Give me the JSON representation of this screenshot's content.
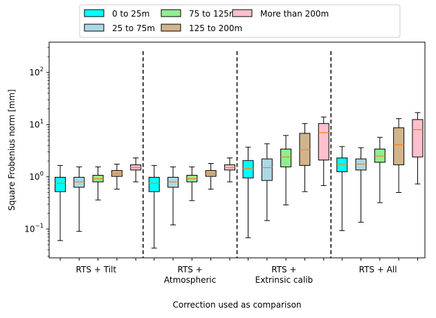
{
  "chart_data": {
    "type": "box",
    "title": "",
    "xlabel": "Correction used as comparison",
    "ylabel": "Square Frobenius norm [mm]",
    "yscale": "log",
    "ylim": [
      0.028,
      380
    ],
    "y_ticks": [
      {
        "value": 0.1,
        "base": "10",
        "exp": "−1"
      },
      {
        "value": 1,
        "base": "10",
        "exp": "0"
      },
      {
        "value": 10,
        "base": "10",
        "exp": "1"
      },
      {
        "value": 100,
        "base": "10",
        "exp": "2"
      }
    ],
    "groups": [
      {
        "label": [
          "RTS + Tilt"
        ]
      },
      {
        "label": [
          "RTS +",
          "Atmospheric"
        ]
      },
      {
        "label": [
          "RTS +",
          "Extrinsic calib"
        ]
      },
      {
        "label": [
          "RTS + All"
        ]
      }
    ],
    "legend": {
      "placement": "top-center",
      "entries": [
        {
          "label": "0 to 25m",
          "color": "#00FFFF"
        },
        {
          "label": "25 to 75m",
          "color": "#ADD8E6"
        },
        {
          "label": "75 to 125m",
          "color": "#90EE90"
        },
        {
          "label": "125 to 200m",
          "color": "#D2B48C"
        },
        {
          "label": "More than 200m",
          "color": "#FFC0CB"
        }
      ]
    },
    "series": [
      {
        "name": "0 to 25m",
        "color": "#00FFFF",
        "boxes": [
          {
            "min": 0.06,
            "q1": 0.52,
            "median": 0.75,
            "q3": 0.98,
            "max": 1.65
          },
          {
            "min": 0.043,
            "q1": 0.52,
            "median": 0.75,
            "q3": 0.98,
            "max": 1.65
          },
          {
            "min": 0.068,
            "q1": 0.95,
            "median": 1.45,
            "q3": 2.05,
            "max": 3.7
          },
          {
            "min": 0.093,
            "q1": 1.25,
            "median": 1.75,
            "q3": 2.3,
            "max": 3.8
          }
        ]
      },
      {
        "name": "25 to 75m",
        "color": "#ADD8E6",
        "boxes": [
          {
            "min": 0.09,
            "q1": 0.63,
            "median": 0.8,
            "q3": 0.98,
            "max": 1.55
          },
          {
            "min": 0.12,
            "q1": 0.63,
            "median": 0.8,
            "q3": 0.98,
            "max": 1.55
          },
          {
            "min": 0.145,
            "q1": 0.85,
            "median": 1.5,
            "q3": 2.2,
            "max": 4.3
          },
          {
            "min": 0.135,
            "q1": 1.35,
            "median": 1.75,
            "q3": 2.2,
            "max": 3.6
          }
        ]
      },
      {
        "name": "75 to 125m",
        "color": "#90EE90",
        "boxes": [
          {
            "min": 0.36,
            "q1": 0.8,
            "median": 0.92,
            "q3": 1.07,
            "max": 1.55
          },
          {
            "min": 0.35,
            "q1": 0.8,
            "median": 0.92,
            "q3": 1.07,
            "max": 1.55
          },
          {
            "min": 0.29,
            "q1": 1.55,
            "median": 2.4,
            "q3": 3.4,
            "max": 6.2
          },
          {
            "min": 0.32,
            "q1": 1.9,
            "median": 2.5,
            "q3": 3.4,
            "max": 5.7
          }
        ]
      },
      {
        "name": "125 to 200m",
        "color": "#D2B48C",
        "boxes": [
          {
            "min": 0.58,
            "q1": 1.02,
            "median": 1.15,
            "q3": 1.32,
            "max": 1.75
          },
          {
            "min": 0.58,
            "q1": 1.02,
            "median": 1.15,
            "q3": 1.32,
            "max": 1.8
          },
          {
            "min": 0.52,
            "q1": 1.65,
            "median": 3.3,
            "q3": 6.8,
            "max": 10.5
          },
          {
            "min": 0.5,
            "q1": 1.7,
            "median": 4.1,
            "q3": 8.7,
            "max": 13.0
          }
        ]
      },
      {
        "name": "More than 200m",
        "color": "#FFC0CB",
        "boxes": [
          {
            "min": 0.8,
            "q1": 1.35,
            "median": 1.5,
            "q3": 1.7,
            "max": 2.3
          },
          {
            "min": 0.8,
            "q1": 1.35,
            "median": 1.5,
            "q3": 1.7,
            "max": 2.3
          },
          {
            "min": 0.68,
            "q1": 2.1,
            "median": 7.0,
            "q3": 10.5,
            "max": 14.0
          },
          {
            "min": 0.73,
            "q1": 2.4,
            "median": 8.0,
            "q3": 12.5,
            "max": 17.0
          }
        ]
      }
    ],
    "separators": "dashed vertical lines between groups",
    "grid": false
  }
}
